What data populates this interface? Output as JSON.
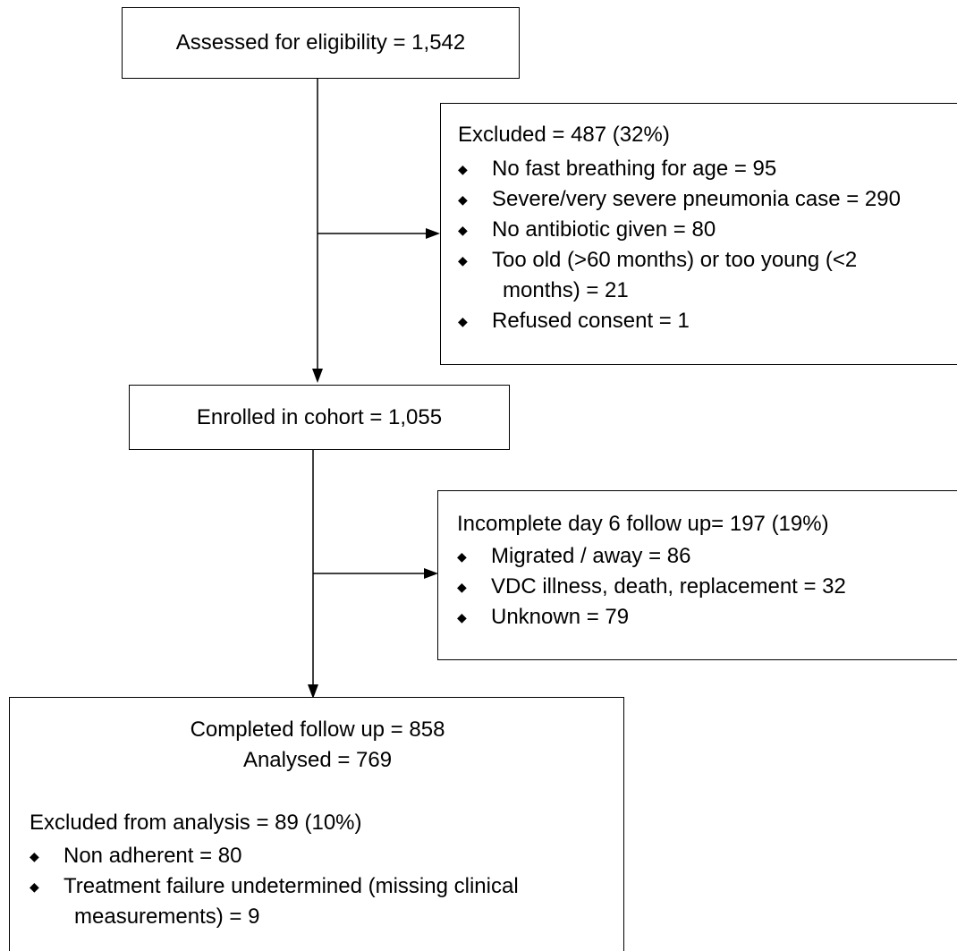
{
  "flow": {
    "assessed": {
      "label": "Assessed for eligibility = 1,542"
    },
    "excluded": {
      "heading": "Excluded = 487 (32%)",
      "items": [
        {
          "line1": "No fast breathing for age = 95"
        },
        {
          "line1": "Severe/very severe pneumonia case = 290"
        },
        {
          "line1": "No antibiotic given = 80"
        },
        {
          "line1": "Too old (>60 months) or too young (<2",
          "line2": "months) = 21"
        },
        {
          "line1": "Refused consent = 1"
        }
      ]
    },
    "enrolled": {
      "label": "Enrolled in cohort = 1,055"
    },
    "incomplete": {
      "heading": "Incomplete day 6 follow up= 197 (19%)",
      "items": [
        {
          "line1": "Migrated / away = 86"
        },
        {
          "line1": "VDC illness, death, replacement = 32"
        },
        {
          "line1": "Unknown = 79"
        }
      ]
    },
    "completed": {
      "line1": "Completed follow up = 858",
      "line2": "Analysed = 769",
      "subheading": "Excluded from analysis = 89 (10%)",
      "items": [
        {
          "line1": "Non adherent = 80"
        },
        {
          "line1": "Treatment failure undetermined (missing clinical",
          "line2": "measurements) = 9"
        }
      ]
    }
  }
}
